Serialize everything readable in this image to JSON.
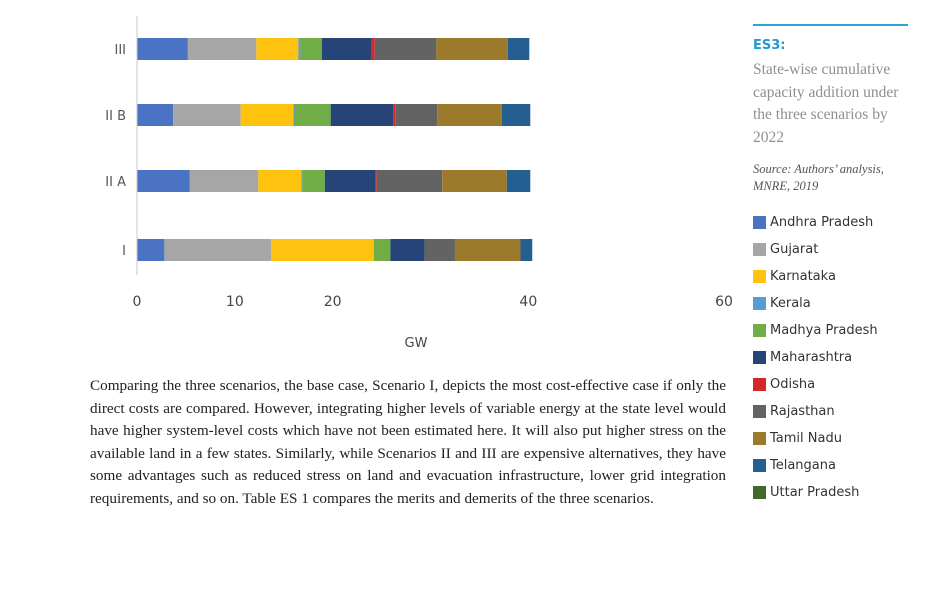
{
  "figure": {
    "id": "ES3:",
    "title": "State-wise cumulative capacity addition under the three scenarios by 2022",
    "source": "Source: Authors’ analysis, MNRE, 2019"
  },
  "colors": {
    "Andhra Pradesh": "#4a74c3",
    "Gujarat": "#a6a6a6",
    "Karnataka": "#ffc20e",
    "Kerala": "#5b9bd5",
    "Madhya Pradesh": "#70ad47",
    "Maharashtra": "#264478",
    "Odisha": "#d62728",
    "Rajasthan": "#636363",
    "Tamil Nadu": "#9c7a2c",
    "Telangana": "#255e91",
    "Uttar Pradesh": "#43682b"
  },
  "chart_data": {
    "type": "bar",
    "orientation": "horizontal",
    "stacked": true,
    "categories": [
      "III",
      "II B",
      "II A",
      "I"
    ],
    "xlabel": "GW",
    "ylabel": "",
    "xlim": [
      0,
      60
    ],
    "xticks": [
      0,
      10,
      20,
      40,
      60
    ],
    "grid": false,
    "legend": "right",
    "series": [
      {
        "name": "Andhra Pradesh",
        "values": [
          5.2,
          3.7,
          5.4,
          2.8
        ]
      },
      {
        "name": "Gujarat",
        "values": [
          7.0,
          6.9,
          7.0,
          10.9
        ]
      },
      {
        "name": "Karnataka",
        "values": [
          4.3,
          5.4,
          4.4,
          10.5
        ]
      },
      {
        "name": "Kerala",
        "values": [
          0.2,
          0.1,
          0.1,
          0.0
        ]
      },
      {
        "name": "Madhya Pradesh",
        "values": [
          2.2,
          3.7,
          2.3,
          1.7
        ]
      },
      {
        "name": "Maharashtra",
        "values": [
          5.1,
          6.4,
          5.2,
          3.5
        ]
      },
      {
        "name": "Odisha",
        "values": [
          0.3,
          0.2,
          0.1,
          0.0
        ]
      },
      {
        "name": "Rajasthan",
        "values": [
          6.3,
          4.3,
          6.7,
          3.1
        ]
      },
      {
        "name": "Tamil Nadu",
        "values": [
          7.3,
          6.6,
          6.6,
          6.7
        ]
      },
      {
        "name": "Telangana",
        "values": [
          2.2,
          2.9,
          2.4,
          1.2
        ]
      },
      {
        "name": "Uttar Pradesh",
        "values": [
          0.0,
          0.0,
          0.0,
          0.0
        ]
      }
    ]
  },
  "body": "Comparing the three scenarios, the base case, Scenario I, depicts the most cost-effective case if only the direct costs are compared. However, integrating higher levels of variable energy at the state level would have higher system-level costs which have not been estimated here. It will also put higher stress on the available land in a few states. Similarly, while Scenarios II and III are expensive alternatives, they have some advantages such as reduced stress on land and evacuation infrastructure, lower grid integration requirements, and so on. Table ES 1 compares the merits and demerits of the three scenarios."
}
